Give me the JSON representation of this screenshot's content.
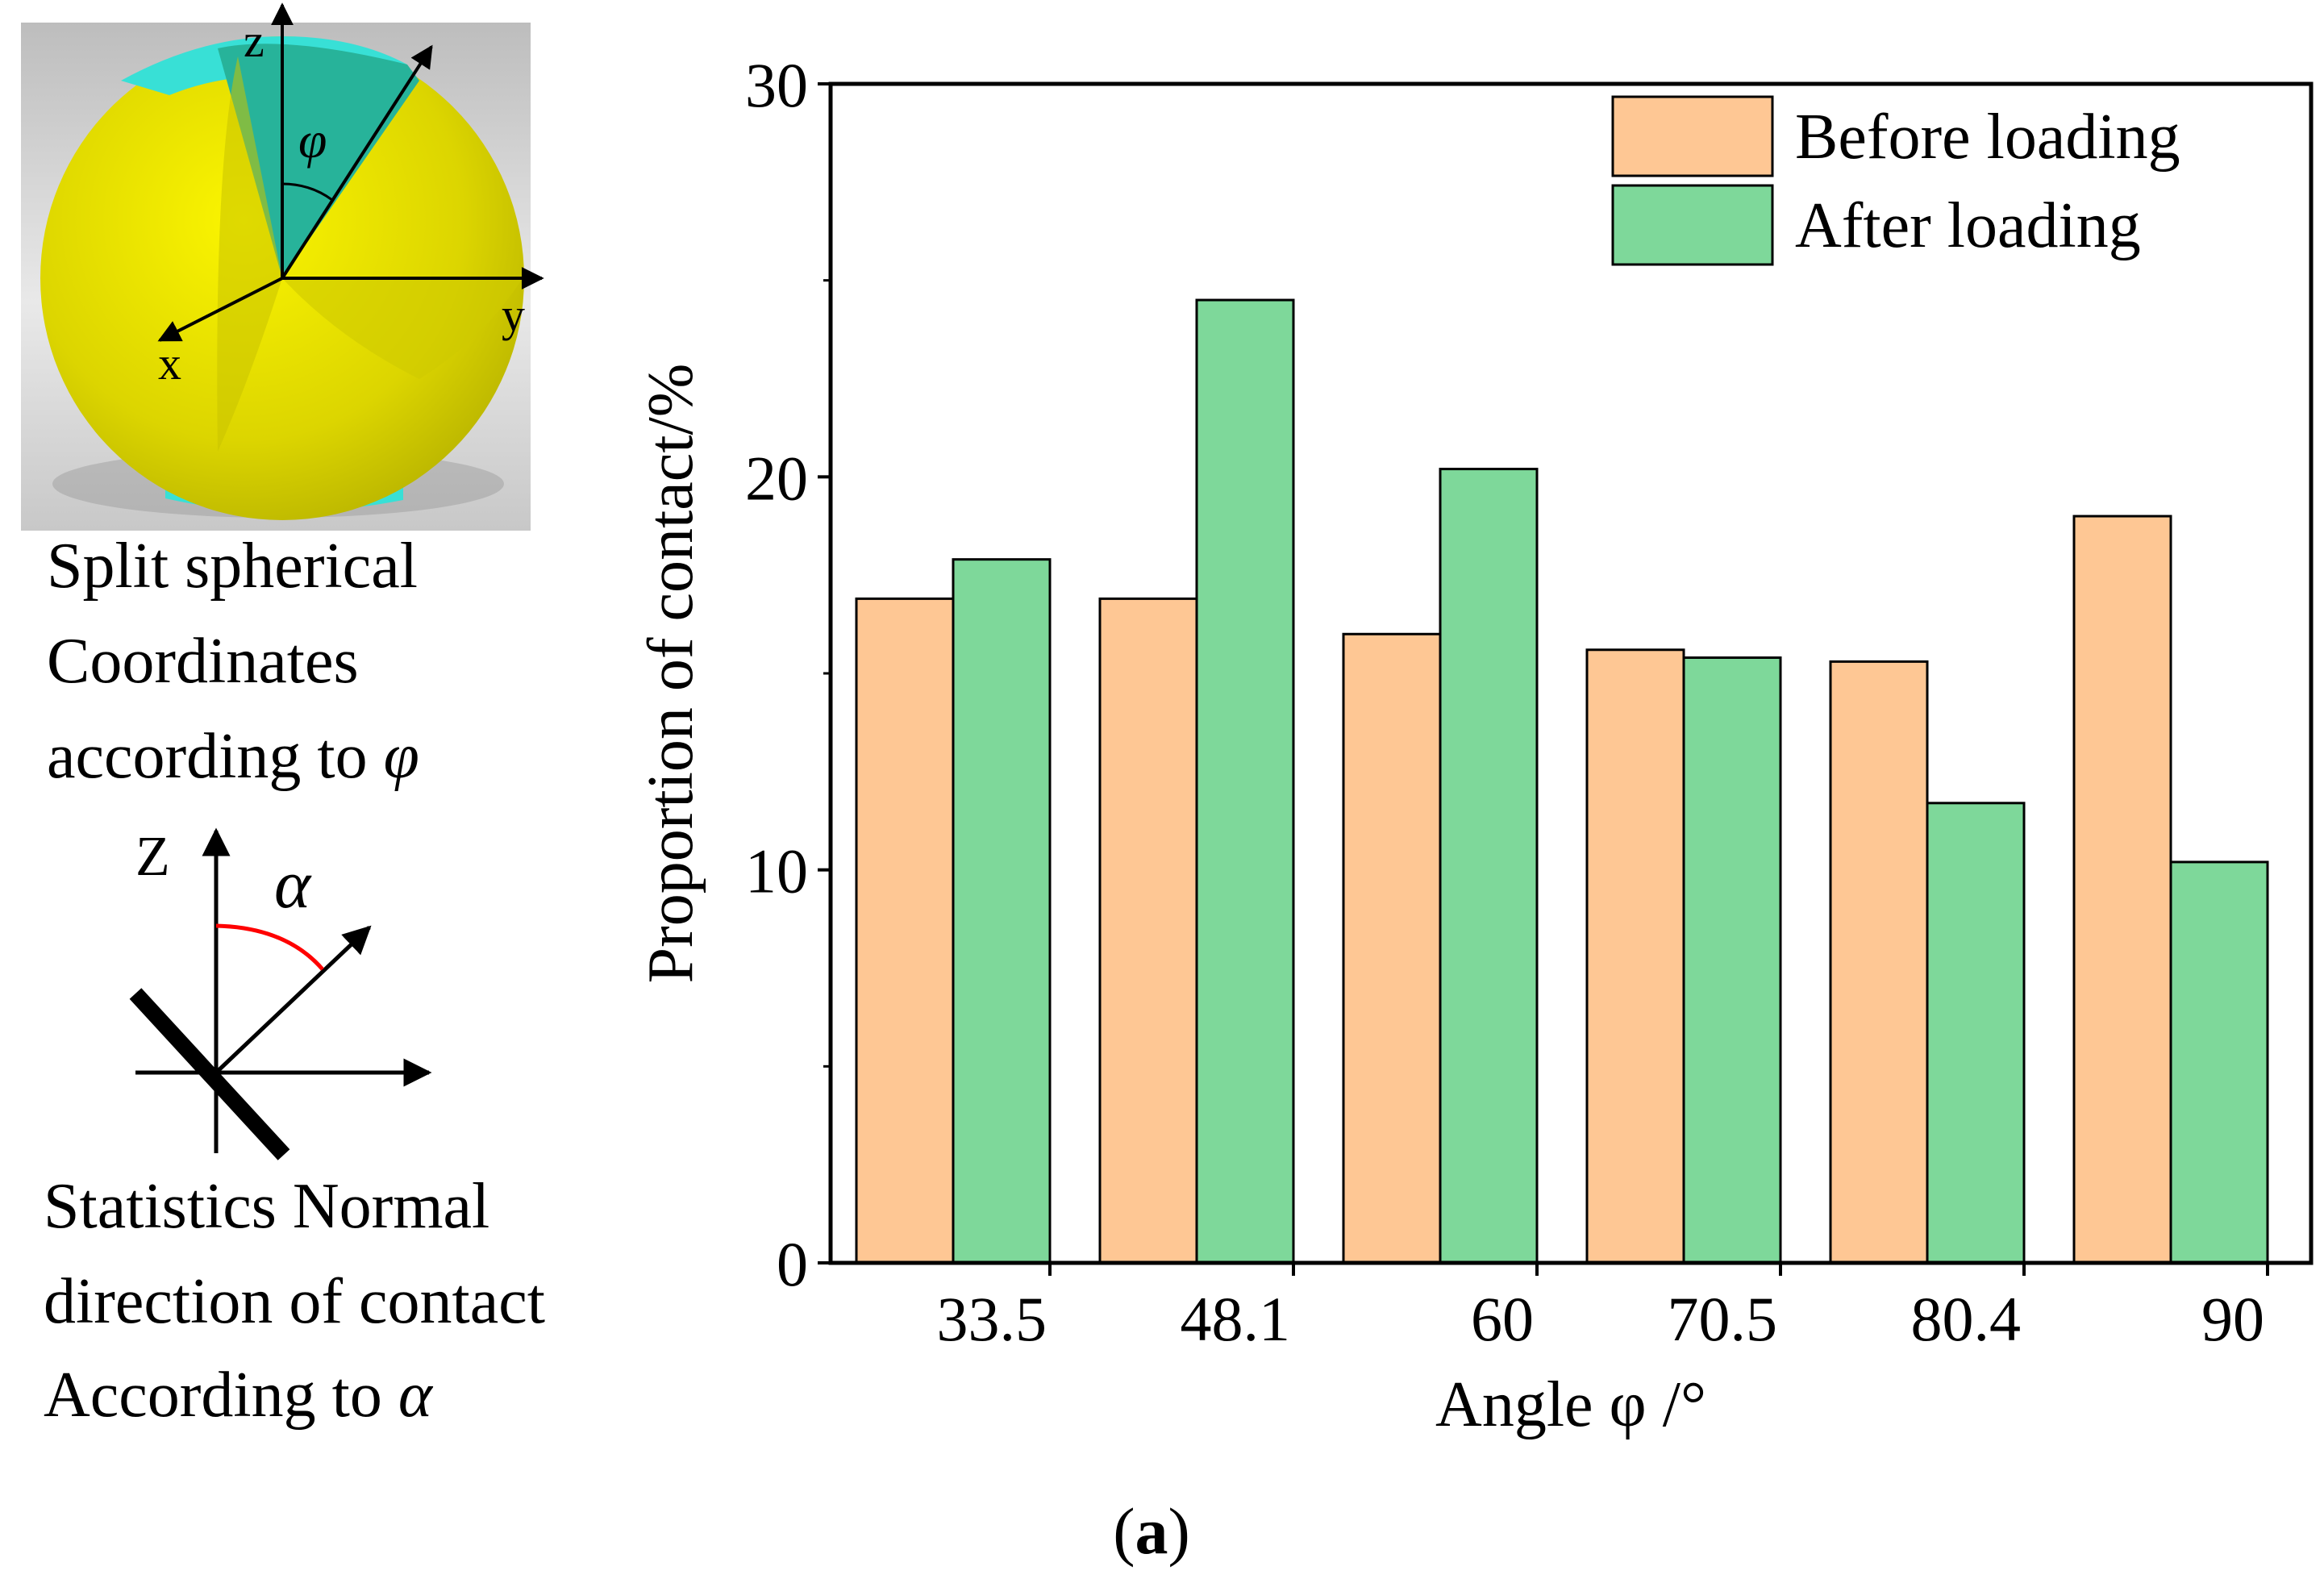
{
  "figure_label": "(a)",
  "figure_label_letter": "a",
  "sphere_panel": {
    "axis_z": "z",
    "axis_y": "y",
    "axis_x": "x",
    "angle_symbol": "φ",
    "caption_lines": [
      "Split spherical",
      "Coordinates",
      "according to"
    ],
    "caption_symbol": "φ",
    "colors": {
      "sphere": "#e6e200",
      "wedge": "#27b39a",
      "cap": "#38e0d6"
    }
  },
  "normal_panel": {
    "axis_z": "Z",
    "angle_symbol": "α",
    "arc_color": "#ff0000",
    "caption_lines": [
      "Statistics Normal",
      "direction of contact",
      "According to"
    ],
    "caption_symbol": "α"
  },
  "chart_data": {
    "type": "bar",
    "title": "",
    "xlabel": "Angle φ /°",
    "ylabel": "Proportion of contact/%",
    "categories": [
      "33.5",
      "48.1",
      "60",
      "70.5",
      "80.4",
      "90"
    ],
    "series": [
      {
        "name": "Before loading",
        "color": "#fec794",
        "values": [
          16.9,
          16.9,
          16.0,
          15.6,
          15.3,
          19.0
        ]
      },
      {
        "name": "After loading",
        "color": "#7ed89a",
        "values": [
          17.9,
          24.5,
          20.2,
          15.4,
          11.7,
          10.2
        ]
      }
    ],
    "ylim": [
      0,
      30
    ],
    "yticks": [
      0,
      10,
      20,
      30
    ],
    "legend_position": "top-right",
    "grid": false
  }
}
